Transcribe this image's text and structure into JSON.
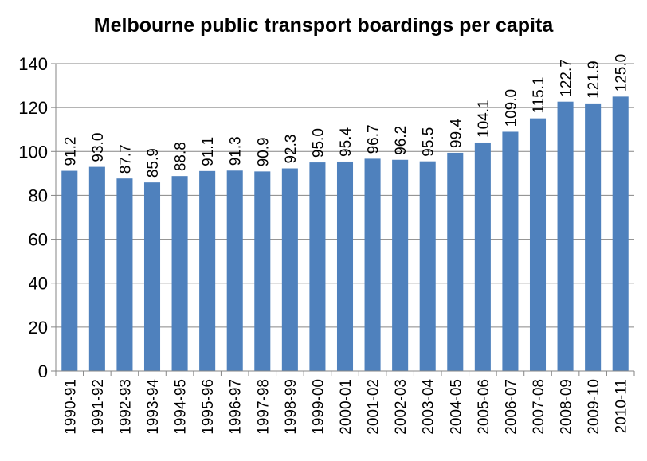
{
  "chart_data": {
    "type": "bar",
    "title": "Melbourne public transport boardings per capita",
    "xlabel": "",
    "ylabel": "",
    "ylim": [
      0,
      140
    ],
    "yticks": [
      0,
      20,
      40,
      60,
      80,
      100,
      120,
      140
    ],
    "grid": "horizontal",
    "legend": "none",
    "bar_color": "#4F81BD",
    "categories": [
      "1990-91",
      "1991-92",
      "1992-93",
      "1993-94",
      "1994-95",
      "1995-96",
      "1996-97",
      "1997-98",
      "1998-99",
      "1999-00",
      "2000-01",
      "2001-02",
      "2002-03",
      "2003-04",
      "2004-05",
      "2005-06",
      "2006-07",
      "2007-08",
      "2008-09",
      "2009-10",
      "2010-11"
    ],
    "values": [
      91.2,
      93.0,
      87.7,
      85.9,
      88.8,
      91.1,
      91.3,
      90.9,
      92.3,
      95.0,
      95.4,
      96.7,
      96.2,
      95.5,
      99.4,
      104.1,
      109.0,
      115.1,
      122.7,
      121.9,
      125.0
    ],
    "value_labels": [
      "91.2",
      "93.0",
      "87.7",
      "85.9",
      "88.8",
      "91.1",
      "91.3",
      "90.9",
      "92.3",
      "95.0",
      "95.4",
      "96.7",
      "96.2",
      "95.5",
      "99.4",
      "104.1",
      "109.0",
      "115.1",
      "122.7",
      "121.9",
      "125.0"
    ]
  }
}
